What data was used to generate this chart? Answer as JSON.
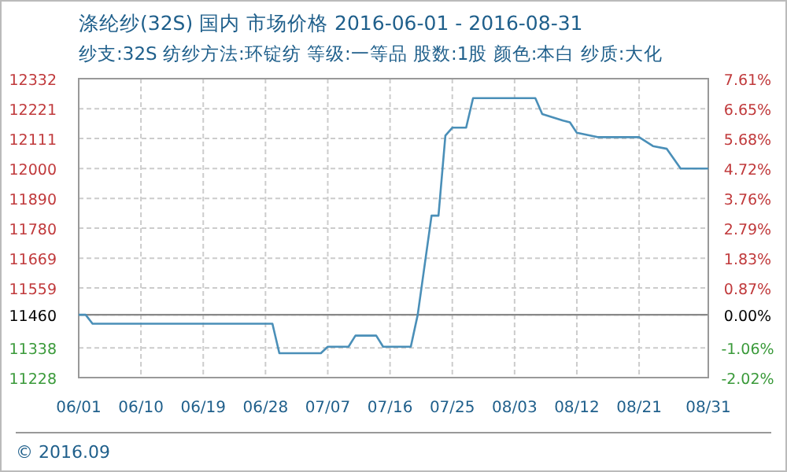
{
  "chart_data": {
    "type": "line",
    "title": "涤纶纱(32S) 国内 市场价格 2016-06-01 - 2016-08-31",
    "subtitle": "纱支:32S 纺纱方法:环锭纺 等级:一等品 股数:1股 颜色:本白 纱质:大化",
    "annotations": [
      "© 2016.09"
    ],
    "x": [
      "2016-06-01",
      "2016-06-02",
      "2016-06-03",
      "2016-06-29",
      "2016-06-30",
      "2016-07-06",
      "2016-07-07",
      "2016-07-10",
      "2016-07-11",
      "2016-07-14",
      "2016-07-15",
      "2016-07-19",
      "2016-07-20",
      "2016-07-22",
      "2016-07-23",
      "2016-07-24",
      "2016-07-25",
      "2016-07-27",
      "2016-07-28",
      "2016-08-06",
      "2016-08-07",
      "2016-08-10",
      "2016-08-11",
      "2016-08-12",
      "2016-08-15",
      "2016-08-21",
      "2016-08-23",
      "2016-08-25",
      "2016-08-27",
      "2016-08-31"
    ],
    "series": [
      {
        "color": "#4a8fb8",
        "values": [
          11460,
          11460,
          11427,
          11427,
          11318,
          11318,
          11342,
          11342,
          11383,
          11383,
          11342,
          11342,
          11460,
          11826,
          11826,
          12122,
          12151,
          12151,
          12260,
          12260,
          12201,
          12177,
          12171,
          12132,
          12116,
          12116,
          12083,
          12073,
          12000,
          12000
        ]
      }
    ],
    "xlim": [
      "2016-06-01",
      "2016-08-31"
    ],
    "xticks": [
      {
        "value": "2016-06-01",
        "label": "06/01"
      },
      {
        "value": "2016-06-10",
        "label": "06/10"
      },
      {
        "value": "2016-06-19",
        "label": "06/19"
      },
      {
        "value": "2016-06-28",
        "label": "06/28"
      },
      {
        "value": "2016-07-07",
        "label": "07/07"
      },
      {
        "value": "2016-07-16",
        "label": "07/16"
      },
      {
        "value": "2016-07-25",
        "label": "07/25"
      },
      {
        "value": "2016-08-03",
        "label": "08/03"
      },
      {
        "value": "2016-08-12",
        "label": "08/12"
      },
      {
        "value": "2016-08-21",
        "label": "08/21"
      },
      {
        "value": "2016-08-31",
        "label": "08/31"
      }
    ],
    "ylim": [
      11228,
      12332
    ],
    "yticks": [
      11228,
      11338,
      11460,
      11559,
      11669,
      11780,
      11890,
      12000,
      12111,
      12221,
      12332
    ],
    "y2lim": [
      -2.02,
      7.61
    ],
    "y2ticks": [
      {
        "value": -2.02,
        "label": "-2.02%"
      },
      {
        "value": -1.06,
        "label": "-1.06%"
      },
      {
        "value": 0,
        "label": "0.00%"
      },
      {
        "value": 0.87,
        "label": "0.87%"
      },
      {
        "value": 1.83,
        "label": "1.83%"
      },
      {
        "value": 2.79,
        "label": "2.79%"
      },
      {
        "value": 3.76,
        "label": "3.76%"
      },
      {
        "value": 4.72,
        "label": "4.72%"
      },
      {
        "value": 5.68,
        "label": "5.68%"
      },
      {
        "value": 6.65,
        "label": "6.65%"
      },
      {
        "value": 7.61,
        "label": "7.61%"
      }
    ],
    "ref_lines": [
      {
        "axis": "y",
        "value": 11460,
        "color": "#888888"
      }
    ],
    "grid": true,
    "marker": "none",
    "line_style": "solid"
  }
}
